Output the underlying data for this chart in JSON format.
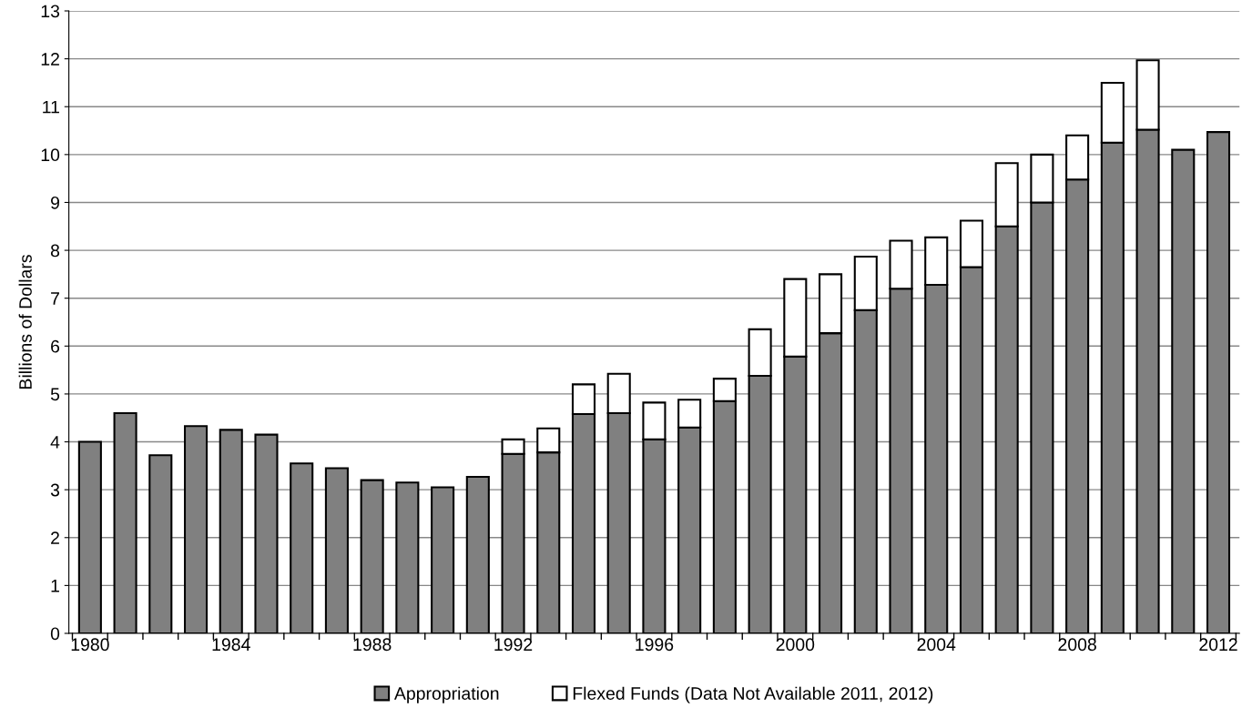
{
  "chart_data": {
    "type": "bar",
    "stacked": true,
    "ylabel": "Billions of Dollars",
    "categories": [
      "1980",
      null,
      null,
      null,
      "1984",
      null,
      null,
      null,
      "1988",
      null,
      null,
      null,
      "1992",
      null,
      null,
      null,
      "1996",
      null,
      null,
      null,
      "2000",
      null,
      null,
      null,
      "2004",
      null,
      null,
      null,
      "2008",
      null,
      null,
      null,
      "2012"
    ],
    "series": [
      {
        "name": "Appropriation",
        "color": "#808080",
        "values": [
          4.0,
          4.6,
          3.72,
          4.33,
          4.25,
          4.15,
          3.55,
          3.45,
          3.2,
          3.15,
          3.05,
          3.27,
          3.75,
          3.78,
          4.58,
          4.6,
          4.05,
          4.3,
          4.85,
          5.38,
          5.78,
          6.27,
          6.75,
          7.2,
          7.28,
          7.65,
          8.5,
          9.0,
          9.48,
          10.25,
          10.52,
          10.1,
          10.47
        ]
      },
      {
        "name": "Flexed Funds (Data Not Available 2011, 2012)",
        "color": "#ffffff",
        "values": [
          null,
          null,
          null,
          null,
          null,
          null,
          null,
          null,
          null,
          null,
          null,
          null,
          0.3,
          0.5,
          0.62,
          0.82,
          0.77,
          0.58,
          0.47,
          0.97,
          1.62,
          1.23,
          1.12,
          1.0,
          0.99,
          0.97,
          1.32,
          1.0,
          0.92,
          1.25,
          1.45,
          null,
          null
        ]
      }
    ],
    "ylim": [
      0,
      13
    ],
    "yticks": [
      0,
      1,
      2,
      3,
      4,
      5,
      6,
      7,
      8,
      9,
      10,
      11,
      12,
      13
    ],
    "grid": "y",
    "legend": "bottom"
  }
}
